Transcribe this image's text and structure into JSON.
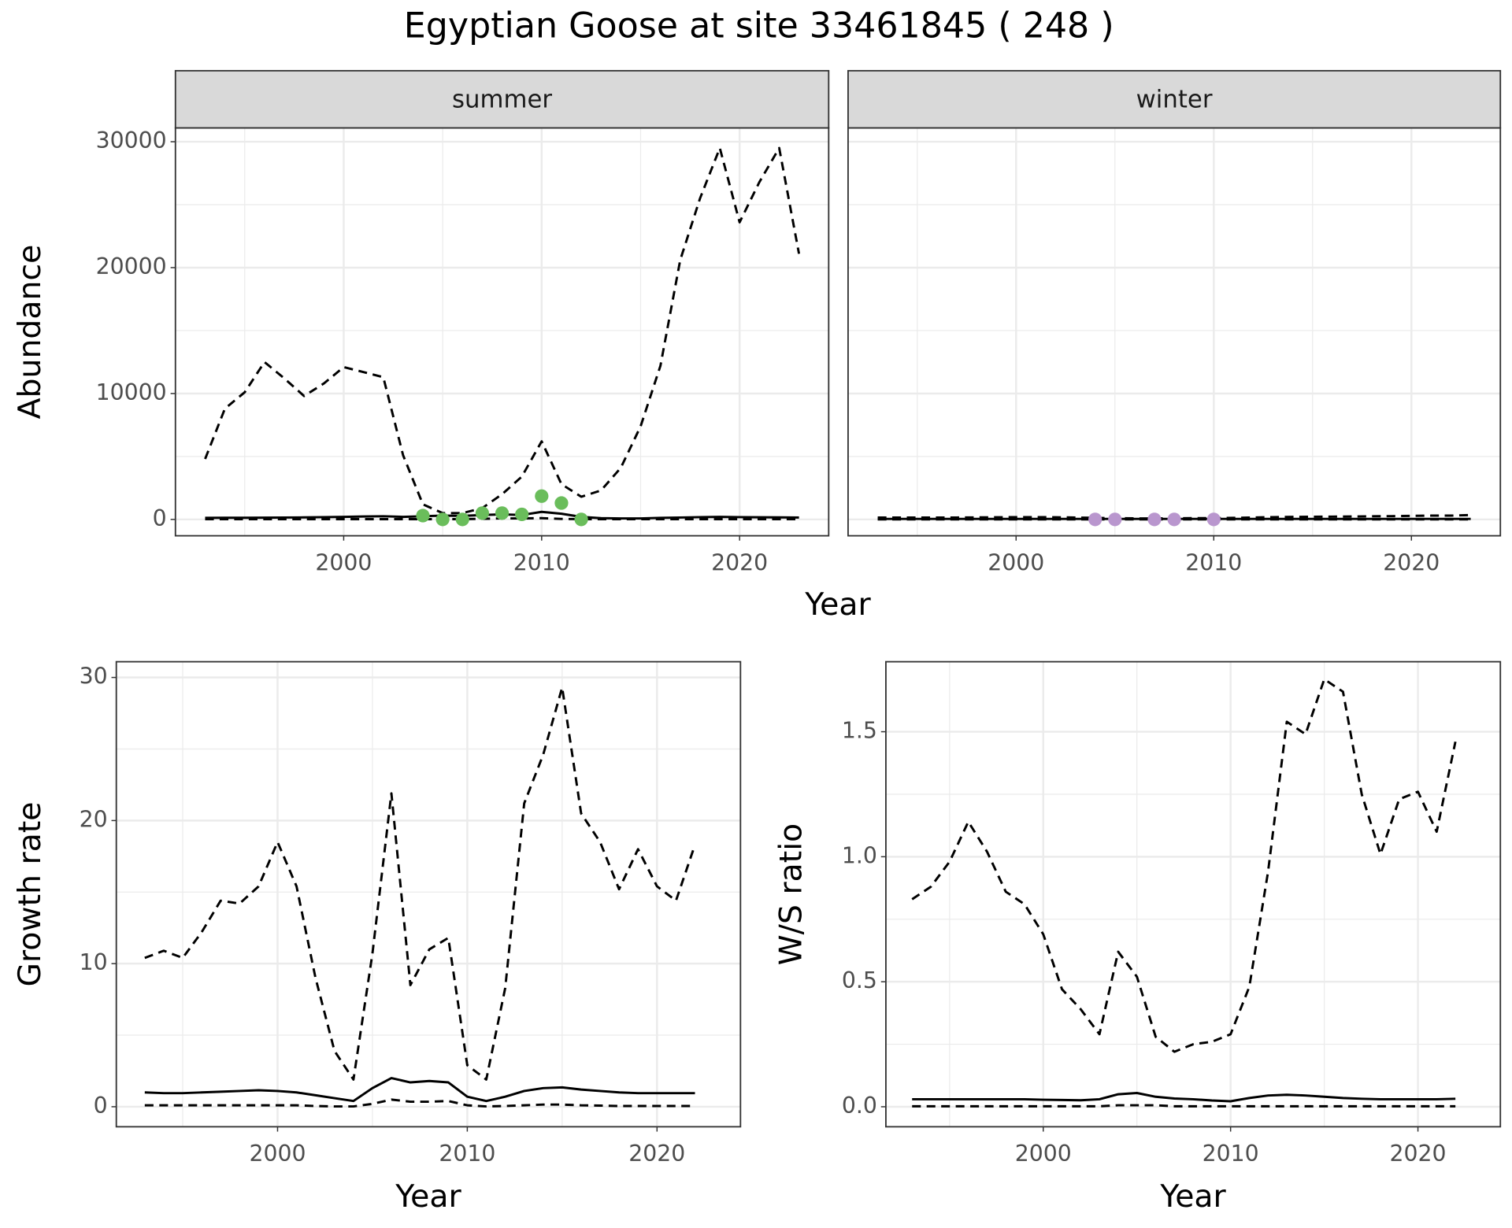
{
  "title": "Egyptian Goose at site 33461845 ( 248 )",
  "chart_data": [
    {
      "type": "line",
      "facet": "summer",
      "ylabel": "Abundance",
      "xlabel": "Year",
      "xlim": [
        1991.5,
        2024.5
      ],
      "xticks": [
        2000,
        2010,
        2020
      ],
      "x_minor_ticks": [
        1995,
        2005,
        2015
      ],
      "ylim": [
        -1300,
        31100
      ],
      "yticks": [
        0,
        10000,
        20000,
        30000
      ],
      "y_minor_ticks": [
        5000,
        15000,
        25000
      ],
      "grid": true,
      "x": [
        1993,
        1994,
        1995,
        1996,
        1997,
        1998,
        1999,
        2000,
        2001,
        2002,
        2003,
        2004,
        2005,
        2006,
        2007,
        2008,
        2009,
        2010,
        2011,
        2012,
        2013,
        2014,
        2015,
        2016,
        2017,
        2018,
        2019,
        2020,
        2021,
        2022,
        2023
      ],
      "series": [
        {
          "style": "solid",
          "color": "#000000",
          "values": [
            120,
            130,
            130,
            140,
            150,
            160,
            180,
            200,
            230,
            250,
            200,
            250,
            300,
            280,
            350,
            400,
            350,
            600,
            450,
            200,
            100,
            80,
            80,
            120,
            150,
            180,
            200,
            180,
            170,
            160,
            150
          ]
        },
        {
          "style": "dashed",
          "color": "#000000",
          "values": [
            4800,
            8800,
            10100,
            12500,
            11200,
            9800,
            10800,
            12100,
            11700,
            11300,
            5100,
            1200,
            500,
            500,
            900,
            2000,
            3400,
            6200,
            2800,
            1800,
            2300,
            4100,
            7400,
            12200,
            20600,
            25500,
            29500,
            23600,
            26800,
            29500,
            21100
          ]
        },
        {
          "style": "dashed",
          "color": "#000000",
          "values": [
            20,
            20,
            20,
            20,
            20,
            20,
            20,
            20,
            20,
            20,
            20,
            20,
            20,
            20,
            50,
            80,
            80,
            100,
            40,
            20,
            20,
            20,
            20,
            20,
            20,
            20,
            20,
            20,
            20,
            20,
            20
          ]
        }
      ],
      "points": {
        "color": "#6abd5b",
        "x": [
          2004,
          2005,
          2006,
          2007,
          2008,
          2009,
          2010,
          2011,
          2012
        ],
        "values": [
          300,
          0,
          0,
          500,
          500,
          400,
          1850,
          1300,
          0
        ]
      }
    },
    {
      "type": "line",
      "facet": "winter",
      "ytick_labels": false,
      "xlim": [
        1991.5,
        2024.5
      ],
      "xticks": [
        2000,
        2010,
        2020
      ],
      "x_minor_ticks": [
        1995,
        2005,
        2015
      ],
      "ylim": [
        -1300,
        31100
      ],
      "yticks": [
        0,
        10000,
        20000,
        30000
      ],
      "y_minor_ticks": [
        5000,
        15000,
        25000
      ],
      "grid": true,
      "x": [
        1993,
        1994,
        1995,
        1996,
        1997,
        1998,
        1999,
        2000,
        2001,
        2002,
        2003,
        2004,
        2005,
        2006,
        2007,
        2008,
        2009,
        2010,
        2011,
        2012,
        2013,
        2014,
        2015,
        2016,
        2017,
        2018,
        2019,
        2020,
        2021,
        2022,
        2023
      ],
      "series": [
        {
          "style": "solid",
          "color": "#000000",
          "values": [
            40,
            40,
            40,
            40,
            40,
            40,
            40,
            40,
            40,
            40,
            40,
            40,
            40,
            40,
            40,
            40,
            40,
            40,
            40,
            40,
            40,
            40,
            40,
            40,
            40,
            40,
            40,
            40,
            40,
            40,
            40
          ]
        },
        {
          "style": "dashed",
          "color": "#000000",
          "values": [
            150,
            150,
            150,
            150,
            150,
            160,
            170,
            180,
            180,
            170,
            150,
            120,
            100,
            80,
            80,
            90,
            100,
            100,
            120,
            150,
            180,
            200,
            210,
            220,
            230,
            250,
            260,
            280,
            300,
            300,
            350
          ]
        },
        {
          "style": "dashed",
          "color": "#000000",
          "values": [
            5,
            5,
            5,
            5,
            5,
            5,
            5,
            5,
            5,
            5,
            5,
            5,
            5,
            5,
            5,
            5,
            5,
            5,
            5,
            5,
            5,
            5,
            5,
            5,
            5,
            5,
            5,
            5,
            5,
            5,
            5
          ]
        }
      ],
      "points": {
        "color": "#b996ce",
        "x": [
          2004,
          2005,
          2007,
          2008,
          2010
        ],
        "values": [
          0,
          0,
          0,
          0,
          0
        ]
      }
    },
    {
      "type": "line",
      "ylabel": "Growth rate",
      "xlabel": "Year",
      "xlim": [
        1991.5,
        2024.4
      ],
      "xticks": [
        2000,
        2010,
        2020
      ],
      "x_minor_ticks": [
        1995,
        2005,
        2015
      ],
      "ylim": [
        -1.4,
        31.1
      ],
      "yticks": [
        0,
        10,
        20,
        30
      ],
      "y_minor_ticks": [
        5,
        15,
        25
      ],
      "grid": true,
      "x": [
        1993,
        1994,
        1995,
        1996,
        1997,
        1998,
        1999,
        2000,
        2001,
        2002,
        2003,
        2004,
        2005,
        2006,
        2007,
        2008,
        2009,
        2010,
        2011,
        2012,
        2013,
        2014,
        2015,
        2016,
        2017,
        2018,
        2019,
        2020,
        2021,
        2022
      ],
      "series": [
        {
          "style": "solid",
          "color": "#000000",
          "values": [
            1.0,
            0.95,
            0.95,
            1.0,
            1.05,
            1.1,
            1.15,
            1.1,
            1.0,
            0.8,
            0.6,
            0.4,
            1.3,
            2.0,
            1.7,
            1.8,
            1.7,
            0.7,
            0.4,
            0.7,
            1.1,
            1.3,
            1.35,
            1.2,
            1.1,
            1.0,
            0.95,
            0.95,
            0.95,
            0.95
          ]
        },
        {
          "style": "dashed",
          "color": "#000000",
          "values": [
            10.4,
            10.9,
            10.4,
            12.2,
            14.4,
            14.2,
            15.4,
            18.5,
            15.4,
            9.0,
            3.9,
            1.9,
            10.7,
            21.9,
            8.5,
            11.0,
            11.8,
            2.9,
            1.9,
            8.3,
            21.2,
            24.6,
            29.3,
            20.5,
            18.5,
            15.2,
            18.0,
            15.4,
            14.4,
            18.3
          ]
        },
        {
          "style": "dashed",
          "color": "#000000",
          "values": [
            0.1,
            0.1,
            0.1,
            0.1,
            0.1,
            0.1,
            0.1,
            0.1,
            0.1,
            0.05,
            0.02,
            0.02,
            0.2,
            0.5,
            0.35,
            0.35,
            0.4,
            0.1,
            0.02,
            0.05,
            0.1,
            0.15,
            0.15,
            0.1,
            0.08,
            0.05,
            0.05,
            0.05,
            0.05,
            0.05
          ]
        }
      ]
    },
    {
      "type": "line",
      "ylabel": "W/S ratio",
      "xlabel": "Year",
      "xlim": [
        1991.6,
        2024.4
      ],
      "xticks": [
        2000,
        2010,
        2020
      ],
      "x_minor_ticks": [
        1995,
        2005,
        2015
      ],
      "ylim": [
        -0.08,
        1.78
      ],
      "yticks": [
        {
          "value": 0,
          "label": "0.0"
        },
        0.5,
        {
          "value": 1,
          "label": "1.0"
        },
        1.5
      ],
      "y_minor_ticks": [
        0.25,
        0.75,
        1.25
      ],
      "grid": true,
      "x": [
        1993,
        1994,
        1995,
        1996,
        1997,
        1998,
        1999,
        2000,
        2001,
        2002,
        2003,
        2004,
        2005,
        2006,
        2007,
        2008,
        2009,
        2010,
        2011,
        2012,
        2013,
        2014,
        2015,
        2016,
        2017,
        2018,
        2019,
        2020,
        2021,
        2022
      ],
      "series": [
        {
          "style": "solid",
          "color": "#000000",
          "values": [
            0.03,
            0.03,
            0.03,
            0.03,
            0.03,
            0.03,
            0.03,
            0.028,
            0.027,
            0.026,
            0.03,
            0.05,
            0.055,
            0.04,
            0.033,
            0.03,
            0.025,
            0.022,
            0.035,
            0.045,
            0.048,
            0.045,
            0.04,
            0.035,
            0.032,
            0.03,
            0.03,
            0.03,
            0.03,
            0.032
          ]
        },
        {
          "style": "dashed",
          "color": "#000000",
          "values": [
            0.83,
            0.88,
            0.98,
            1.14,
            1.02,
            0.86,
            0.81,
            0.69,
            0.47,
            0.39,
            0.29,
            0.62,
            0.52,
            0.28,
            0.22,
            0.25,
            0.26,
            0.29,
            0.48,
            0.94,
            1.54,
            1.49,
            1.71,
            1.66,
            1.25,
            1.01,
            1.23,
            1.26,
            1.1,
            1.46
          ]
        },
        {
          "style": "dashed",
          "color": "#000000",
          "values": [
            0.002,
            0.002,
            0.002,
            0.002,
            0.002,
            0.002,
            0.002,
            0.002,
            0.002,
            0.002,
            0.002,
            0.006,
            0.006,
            0.006,
            0.002,
            0.002,
            0.002,
            0.002,
            0.002,
            0.002,
            0.002,
            0.002,
            0.002,
            0.002,
            0.002,
            0.002,
            0.002,
            0.002,
            0.002,
            0.002
          ]
        }
      ]
    }
  ]
}
